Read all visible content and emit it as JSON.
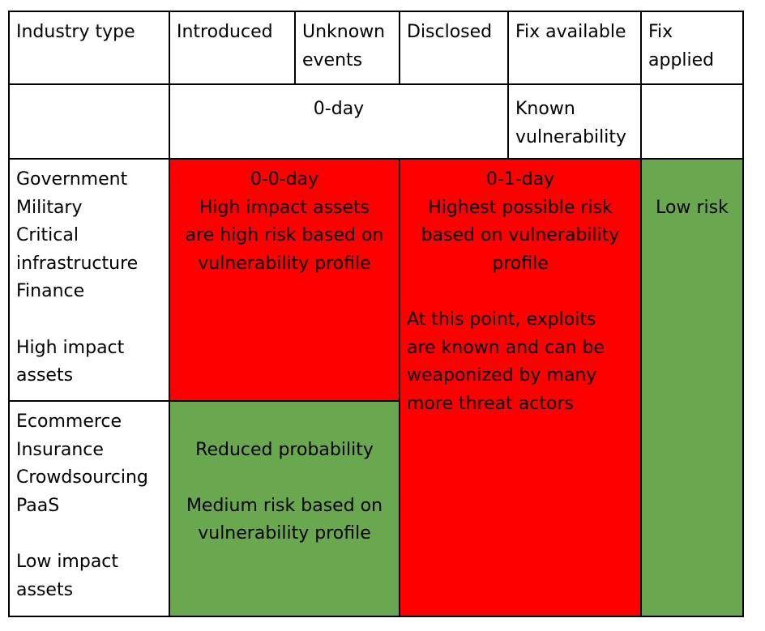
{
  "header": {
    "industry_type": "Industry type",
    "introduced": "Introduced",
    "unknown_events": [
      "Unknown",
      "events"
    ],
    "disclosed": "Disclosed",
    "fix_available": "Fix available",
    "fix_applied": [
      "Fix",
      "applied"
    ]
  },
  "phase_row": {
    "zero_day": "0-day",
    "known_vulnerability": [
      "Known",
      "vulnerability"
    ]
  },
  "high_impact": {
    "industries": [
      "Government",
      "Military",
      "Critical",
      "infrastructure",
      "Finance"
    ],
    "label": [
      "High impact",
      "assets"
    ],
    "zero_zero_day": [
      "0-0-day",
      "High impact assets",
      "are high risk based on",
      "vulnerability profile"
    ]
  },
  "zero_one_day": {
    "lines": [
      "0-1-day",
      "Highest possible risk",
      "based on vulnerability",
      "profile"
    ],
    "note": [
      "At this point, exploits",
      "are known and can be",
      "weaponized by many",
      "more threat actors"
    ]
  },
  "fix_applied_cell": "Low risk",
  "low_impact": {
    "industries": [
      "Ecommerce",
      "Insurance",
      "Crowdsourcing",
      "PaaS"
    ],
    "label": [
      "Low impact",
      "assets"
    ],
    "reduced": "Reduced probability",
    "medium": [
      "Medium risk based on",
      "vulnerability profile"
    ]
  },
  "colors": {
    "high_risk": "#ff0000",
    "low_risk": "#6aa84f",
    "border": "#000000"
  }
}
